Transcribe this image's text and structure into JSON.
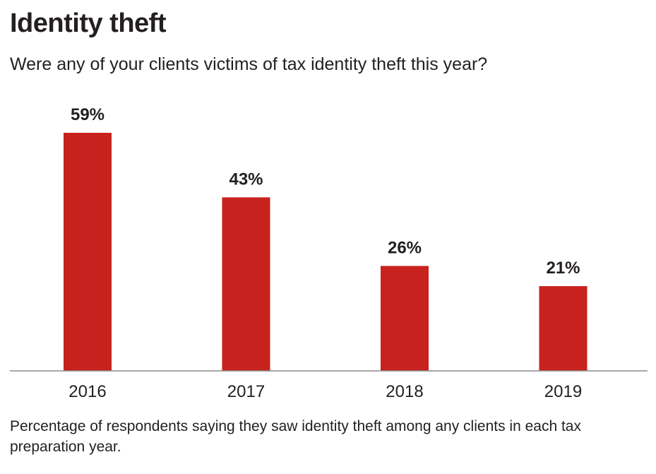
{
  "header": {
    "title": "Identity theft",
    "subtitle": "Were any of your clients victims of tax identity theft this year?"
  },
  "footer": {
    "note": "Percentage of respondents saying they saw identity theft among any clients in each tax preparation year."
  },
  "colors": {
    "bar": "#c8221e",
    "axis": "#8c8c8c",
    "text": "#231f20"
  },
  "chart_data": {
    "type": "bar",
    "title": "Identity theft",
    "subtitle": "Were any of your clients victims of tax identity theft this year?",
    "categories": [
      "2016",
      "2017",
      "2018",
      "2019"
    ],
    "values": [
      59,
      43,
      26,
      21
    ],
    "value_labels": [
      "59%",
      "43%",
      "26%",
      "21%"
    ],
    "unit": "%",
    "xlabel": "",
    "ylabel": "",
    "ylim": [
      0,
      59
    ],
    "grid": false
  }
}
